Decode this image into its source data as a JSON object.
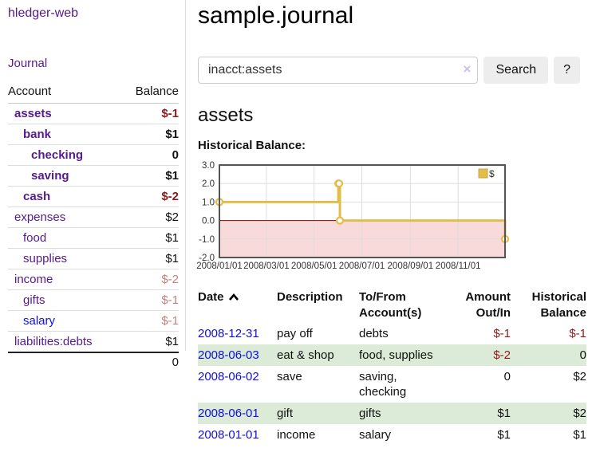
{
  "colors": {
    "link_purple": "#551a8b",
    "link_blue": "#0f0fe0",
    "neg_strong": "#8f1a1a",
    "neg_soft": "#c28080",
    "row_green": "#dcead8",
    "btn_bg": "#ededed",
    "chart_gold": "#e3bd4c",
    "chart_gold_border": "#c9a63c",
    "chart_zero": "#8b0000",
    "chart_neg_fill": "#f9dada",
    "chart_grid": "#dddddd",
    "chart_border": "#555555"
  },
  "sidebar": {
    "app_title": "hledger-web",
    "nav": {
      "journal": "Journal"
    },
    "table": {
      "headers": {
        "account": "Account",
        "balance": "Balance"
      },
      "accounts": [
        {
          "label": "assets",
          "balance": "$-1",
          "link_cls": "acct lvl1 bold",
          "bal_cls": "bal bold neg"
        },
        {
          "label": "bank",
          "balance": "$1",
          "link_cls": "acct lvl2 bold",
          "bal_cls": "bal bold"
        },
        {
          "label": "checking",
          "balance": "0",
          "link_cls": "acct lvl3 bold",
          "bal_cls": "bal bold"
        },
        {
          "label": "saving",
          "balance": "$1",
          "link_cls": "acct lvl3 bold",
          "bal_cls": "bal bold"
        },
        {
          "label": "cash",
          "balance": "$-2",
          "link_cls": "acct lvl2 bold",
          "bal_cls": "bal bold neg"
        },
        {
          "label": "expenses",
          "balance": "$2",
          "link_cls": "acct lvl1",
          "bal_cls": "bal"
        },
        {
          "label": "food",
          "balance": "$1",
          "link_cls": "acct lvl2",
          "bal_cls": "bal"
        },
        {
          "label": "supplies",
          "balance": "$1",
          "link_cls": "acct lvl2",
          "bal_cls": "bal"
        },
        {
          "label": "income",
          "balance": "$-2",
          "link_cls": "acct lvl1",
          "bal_cls": "bal negsoft"
        },
        {
          "label": "gifts",
          "balance": "$-1",
          "link_cls": "acct lvl2",
          "bal_cls": "bal negsoft"
        },
        {
          "label": "salary",
          "balance": "$-1",
          "link_cls": "acct lvl2 blue",
          "bal_cls": "bal negsoft"
        },
        {
          "label": "liabilities:debts",
          "balance": "$1",
          "link_cls": "acct lvl1",
          "bal_cls": "bal"
        }
      ],
      "total": "0"
    }
  },
  "main": {
    "title": "sample.journal",
    "search": {
      "value": "inacct:assets",
      "clear": "×",
      "button": "Search",
      "help": "?"
    },
    "account_heading": "assets",
    "chart_label": "Historical Balance:"
  },
  "chart_data": {
    "type": "line",
    "title": "Historical Balance",
    "step": true,
    "legend_position": "top-right",
    "grid": true,
    "ylim": [
      -2,
      3
    ],
    "y_ticks": [
      3.0,
      2.0,
      1.0,
      0.0,
      -1.0,
      -2.0
    ],
    "x_range": [
      "2008/01/01",
      "2008/12/31"
    ],
    "x_ticks": [
      "2008/01/01",
      "2008/03/01",
      "2008/05/01",
      "2008/07/01",
      "2008/09/01",
      "2008/11/01"
    ],
    "negative_region_shaded": true,
    "zero_line": true,
    "series": [
      {
        "name": "$",
        "points": [
          {
            "date": "2008/01/01",
            "value": 1
          },
          {
            "date": "2008/06/01",
            "value": 2
          },
          {
            "date": "2008/06/02",
            "value": 2
          },
          {
            "date": "2008/06/03",
            "value": 0
          },
          {
            "date": "2008/12/31",
            "value": -1
          }
        ]
      }
    ]
  },
  "register": {
    "headers": {
      "date": "Date",
      "sort_icon": "chevron-up",
      "description": "Description",
      "accounts": "To/From\nAccount(s)",
      "amount": "Amount\nOut/In",
      "balance": "Historical\nBalance"
    },
    "rows": [
      {
        "date": "2008-12-31",
        "description": "pay off",
        "accounts": "debts",
        "amount": "$-1",
        "amount_cls": "r neg",
        "balance": "$-1",
        "balance_cls": "r neg"
      },
      {
        "date": "2008-06-03",
        "description": "eat & shop",
        "accounts": "food, supplies",
        "amount": "$-2",
        "amount_cls": "r neg",
        "balance": "0",
        "balance_cls": "r"
      },
      {
        "date": "2008-06-02",
        "description": "save",
        "accounts": "saving,\nchecking",
        "amount": "0",
        "amount_cls": "r",
        "balance": "$2",
        "balance_cls": "r"
      },
      {
        "date": "2008-06-01",
        "description": "gift",
        "accounts": "gifts",
        "amount": "$1",
        "amount_cls": "r",
        "balance": "$2",
        "balance_cls": "r"
      },
      {
        "date": "2008-01-01",
        "description": "income",
        "accounts": "salary",
        "amount": "$1",
        "amount_cls": "r",
        "balance": "$1",
        "balance_cls": "r"
      }
    ]
  }
}
